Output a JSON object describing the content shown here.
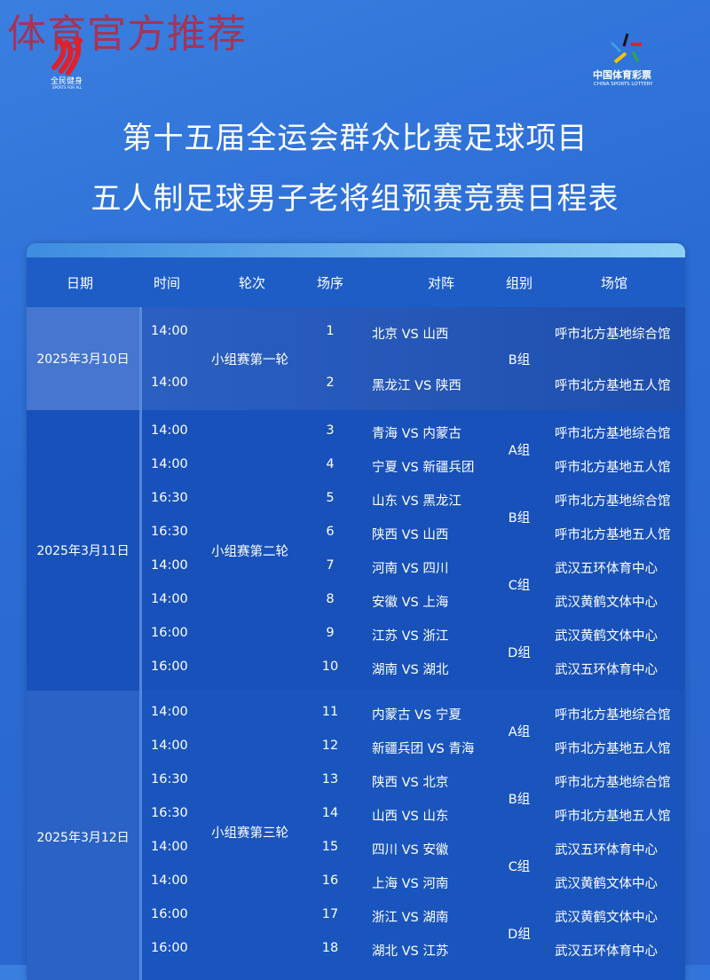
{
  "watermark": "体育官方推荐",
  "logos": {
    "left": {
      "text": "全民健身",
      "sub": "SPORTS FOR ALL"
    },
    "right": {
      "text": "中国体育彩票",
      "sub": "CHINA SPORTS LOTTERY"
    }
  },
  "title_line1": "第十五届全运会群众比赛足球项目",
  "title_line2": "五人制足球男子老将组预赛竞赛日程表",
  "colors": {
    "background": "#2b6cd4",
    "table": "#1a52bb",
    "header": "#1e5dc6",
    "watermark": "#c81e28"
  },
  "headers": [
    "日期",
    "时间",
    "轮次",
    "场序",
    "对阵",
    "组别",
    "场馆"
  ],
  "days": [
    {
      "date": "2025年3月10日",
      "round": "小组赛第一轮",
      "groups": [
        {
          "name": "B组",
          "rows": 2
        }
      ],
      "matches": [
        [
          "14:00",
          "1",
          "北京 VS 山西",
          "呼市北方基地综合馆"
        ],
        [
          "14:00",
          "2",
          "黑龙江 VS 陕西",
          "呼市北方基地五人馆"
        ]
      ]
    },
    {
      "date": "2025年3月11日",
      "round": "小组赛第二轮",
      "groups": [
        {
          "name": "A组",
          "rows": 2
        },
        {
          "name": "B组",
          "rows": 2
        },
        {
          "name": "C组",
          "rows": 2
        },
        {
          "name": "D组",
          "rows": 2
        }
      ],
      "matches": [
        [
          "14:00",
          "3",
          "青海 VS 内蒙古",
          "呼市北方基地综合馆"
        ],
        [
          "14:00",
          "4",
          "宁夏 VS 新疆兵团",
          "呼市北方基地五人馆"
        ],
        [
          "16:30",
          "5",
          "山东 VS 黑龙江",
          "呼市北方基地综合馆"
        ],
        [
          "16:30",
          "6",
          "陕西 VS 山西",
          "呼市北方基地五人馆"
        ],
        [
          "14:00",
          "7",
          "河南 VS 四川",
          "武汉五环体育中心"
        ],
        [
          "14:00",
          "8",
          "安徽 VS 上海",
          "武汉黄鹤文体中心"
        ],
        [
          "16:00",
          "9",
          "江苏 VS 浙江",
          "武汉黄鹤文体中心"
        ],
        [
          "16:00",
          "10",
          "湖南 VS 湖北",
          "武汉五环体育中心"
        ]
      ]
    },
    {
      "date": "2025年3月12日",
      "round": "小组赛第三轮",
      "groups": [
        {
          "name": "A组",
          "rows": 2
        },
        {
          "name": "B组",
          "rows": 2
        },
        {
          "name": "C组",
          "rows": 2
        },
        {
          "name": "D组",
          "rows": 2
        }
      ],
      "matches": [
        [
          "14:00",
          "11",
          "内蒙古 VS 宁夏",
          "呼市北方基地综合馆"
        ],
        [
          "14:00",
          "12",
          "新疆兵团 VS 青海",
          "呼市北方基地五人馆"
        ],
        [
          "16:30",
          "13",
          "陕西 VS 北京",
          "呼市北方基地综合馆"
        ],
        [
          "16:30",
          "14",
          "山西 VS 山东",
          "呼市北方基地五人馆"
        ],
        [
          "14:00",
          "15",
          "四川 VS 安徽",
          "武汉五环体育中心"
        ],
        [
          "14:00",
          "16",
          "上海 VS 河南",
          "武汉黄鹤文体中心"
        ],
        [
          "16:00",
          "17",
          "浙江 VS 湖南",
          "武汉黄鹤文体中心"
        ],
        [
          "16:00",
          "18",
          "湖北 VS 江苏",
          "武汉五环体育中心"
        ]
      ]
    }
  ]
}
